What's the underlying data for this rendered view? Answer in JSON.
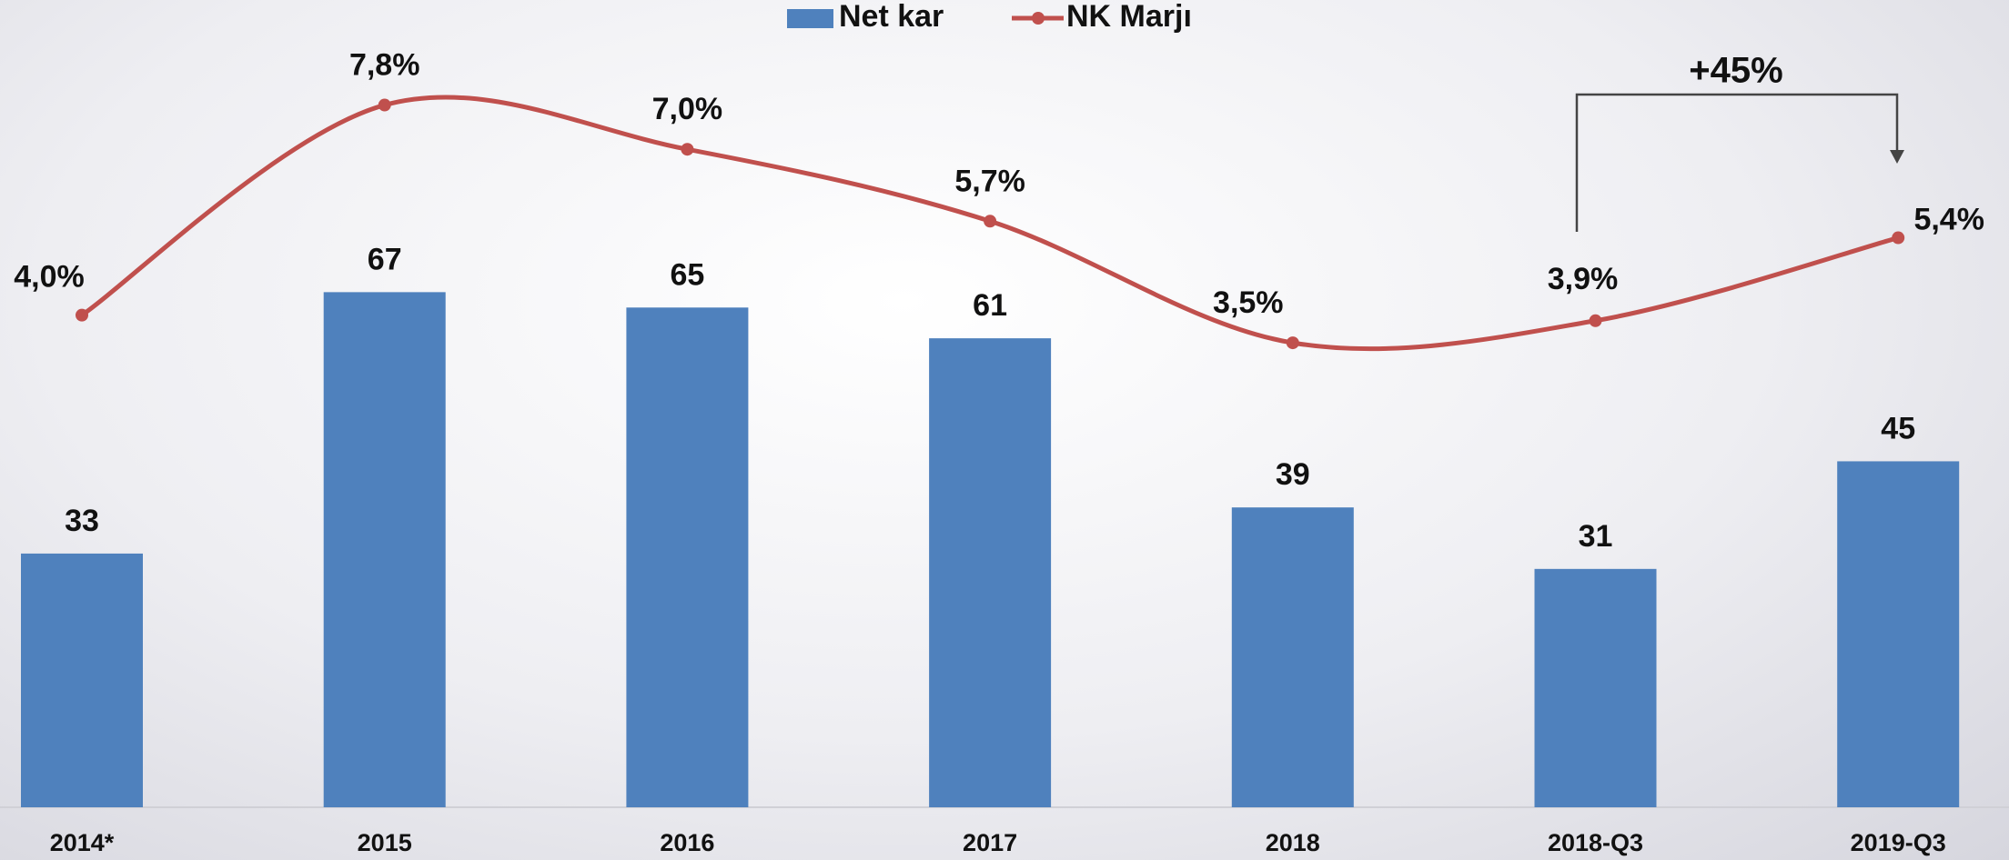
{
  "chart_data": {
    "type": "bar",
    "categories": [
      "2014*",
      "2015",
      "2016",
      "2017",
      "2018",
      "2018-Q3",
      "2019-Q3"
    ],
    "series": [
      {
        "name": "Net kar",
        "color": "#4f81bd",
        "type": "bar",
        "values": [
          33,
          67,
          65,
          61,
          39,
          31,
          45
        ]
      },
      {
        "name": "NK Marjı",
        "color": "#c0504d",
        "type": "line",
        "axis": "y2",
        "values": [
          4.0,
          7.8,
          7.0,
          5.7,
          3.5,
          3.9,
          5.4
        ],
        "value_labels": [
          "4,0%",
          "7,8%",
          "7,0%",
          "5,7%",
          "3,5%",
          "3,9%",
          "5,4%"
        ]
      }
    ],
    "ylim": [
      0,
      105
    ],
    "y2lim": [
      -4.9,
      9.7
    ],
    "legend": "top",
    "annotation": {
      "text": "+45%",
      "color": "#00913f"
    }
  }
}
